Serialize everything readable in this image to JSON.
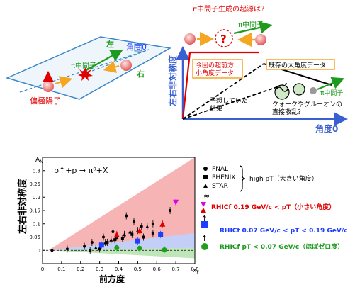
{
  "panel_a": {
    "angle_label": "角度0",
    "left_label": "左",
    "right_label": "右",
    "pion_label": "π中間子",
    "proton_label": "偏極陽子"
  },
  "panel_b": {
    "title_question": "π中間子生成の起源は？",
    "pion_top_label": "π中間子",
    "y_axis_label": "左右非対称度",
    "x_axis_label": "角度0",
    "box_forward_line1": "今回の超前方",
    "box_forward_line2": "小角度データ",
    "box_large_angle": "既存の大角度データ",
    "expected_line1": "予想していた",
    "expected_line2": "結果",
    "quark_line1": "クォークやグルーオンの",
    "quark_line2": "直接散乱？",
    "pion_bottom_label": "π中間子"
  },
  "panel_c": {
    "reaction": "p↑+p → π⁰+X",
    "y_axis_text": "左右非対称度",
    "x_axis_text": "前方度",
    "legend_fnal": "FNAL",
    "legend_phenix": "PHENIX",
    "legend_star": "STAR",
    "high_pt_label": "high pT（大きい角度）",
    "approx_sign": "≈",
    "arrow_up": "↑",
    "rhicf_high": "RHICf 0.19 GeV/c < pT（小さい角度）",
    "rhicf_mid": "RHICf 0.07 GeV/c < pT < 0.19 GeV/c",
    "rhicf_low": "RHICf pT < 0.07 GeV/c（ほぼゼロ度）"
  },
  "chart_data": {
    "type": "scatter",
    "title": "p↑+p → π⁰+X",
    "xlabel": "xF",
    "ylabel": "AN",
    "xlim": [
      0,
      0.8
    ],
    "ylim": [
      -0.05,
      0.35
    ],
    "xticks": [
      0,
      0.1,
      0.2,
      0.3,
      0.4,
      0.5,
      0.6,
      0.7,
      0.8
    ],
    "yticks": [
      0,
      0.05,
      0.1,
      0.15,
      0.2,
      0.25,
      0.3
    ],
    "series": [
      {
        "name": "FNAL",
        "marker": "circle",
        "color": "#000000",
        "points": [
          [
            0.05,
            0.0
          ],
          [
            0.13,
            0.005
          ],
          [
            0.22,
            0.015
          ],
          [
            0.26,
            0.03
          ],
          [
            0.32,
            0.05
          ],
          [
            0.37,
            0.07
          ],
          [
            0.44,
            0.13
          ],
          [
            0.48,
            0.11
          ],
          [
            0.52,
            0.09
          ],
          [
            0.58,
            0.1
          ],
          [
            0.67,
            0.15
          ]
        ]
      },
      {
        "name": "PHENIX",
        "marker": "square",
        "color": "#000000",
        "points": [
          [
            0.25,
            0.0
          ],
          [
            0.3,
            0.005
          ],
          [
            0.34,
            0.03
          ],
          [
            0.38,
            0.04
          ],
          [
            0.42,
            0.045
          ],
          [
            0.47,
            0.06
          ],
          [
            0.53,
            0.05
          ],
          [
            0.58,
            0.065
          ]
        ]
      },
      {
        "name": "STAR",
        "marker": "triangle",
        "color": "#000000",
        "points": [
          [
            0.28,
            0.01
          ],
          [
            0.33,
            0.03
          ],
          [
            0.36,
            0.04
          ],
          [
            0.39,
            0.05
          ],
          [
            0.43,
            0.06
          ],
          [
            0.46,
            0.07
          ],
          [
            0.5,
            0.075
          ],
          [
            0.55,
            0.09
          ]
        ]
      },
      {
        "name": "RHICf 0.19 GeV/c < pT",
        "marker": "triangle",
        "color": "#e00000",
        "points": [
          [
            0.39,
            0.06
          ],
          [
            0.51,
            0.075
          ],
          [
            0.63,
            0.1
          ]
        ]
      },
      {
        "name": "RHICf 0.19 GeV/c < pT (down)",
        "marker": "triangle-down",
        "color": "#e000e0",
        "points": [
          [
            0.7,
            0.18
          ]
        ]
      },
      {
        "name": "RHICf 0.07 GeV/c < pT < 0.19 GeV/c",
        "marker": "square",
        "color": "#1f3fff",
        "points": [
          [
            0.31,
            0.02
          ],
          [
            0.5,
            0.035
          ],
          [
            0.62,
            0.06
          ]
        ]
      },
      {
        "name": "RHICf pT < 0.07 GeV/c",
        "marker": "circle",
        "color": "#1ea01e",
        "points": [
          [
            0.39,
            0.01
          ],
          [
            0.51,
            0.008
          ],
          [
            0.64,
            0.002
          ]
        ]
      }
    ],
    "bands": [
      {
        "name": "high",
        "color": "#f6b4b4"
      },
      {
        "name": "mid",
        "color": "#c4cff8"
      },
      {
        "name": "low",
        "color": "#bfe6b9"
      }
    ]
  },
  "colors": {
    "red": "#e00000",
    "green": "#1e9a1e",
    "blue": "#1f3fff",
    "orange": "#f5a623",
    "magenta": "#e000e0",
    "axis_blue": "#3a5fd0",
    "plane_blue": "#3a86c9"
  }
}
